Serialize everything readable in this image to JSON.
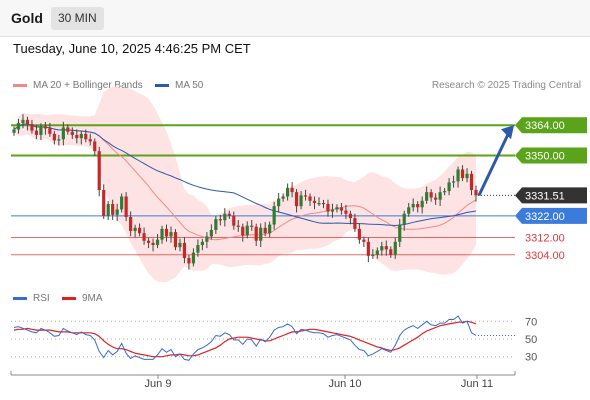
{
  "header": {
    "title": "Gold",
    "timeframe": "30 MIN"
  },
  "timestamp": "Tuesday, June 10, 2025 4:46:25 PM CET",
  "legend": {
    "ma20_label": "MA 20 + Bollinger Bands",
    "ma50_label": "MA 50",
    "ma20_color": "#f08a8a",
    "ma50_color": "#2b5aa8",
    "research": "Research © 2025 Trading Central"
  },
  "rsi_legend": {
    "rsi_label": "RSI",
    "ma_label": "9MA",
    "rsi_color": "#3a6bd0",
    "ma_color": "#e02020"
  },
  "chart_data": {
    "type": "candlestick",
    "price_range": [
      3290,
      3378
    ],
    "levels": [
      {
        "value": 3364.0,
        "label": "3364.00",
        "kind": "resistance",
        "color": "#5aa31a"
      },
      {
        "value": 3350.0,
        "label": "3350.00",
        "kind": "resistance",
        "color": "#5aa31a"
      },
      {
        "value": 3331.51,
        "label": "3331.51",
        "kind": "last-price",
        "color": "#333333"
      },
      {
        "value": 3322.0,
        "label": "3322.00",
        "kind": "pivot",
        "color": "#3a7bdc"
      },
      {
        "value": 3312.0,
        "label": "3312.00",
        "kind": "support",
        "color": "#e03a3a"
      },
      {
        "value": 3304.0,
        "label": "3304.00",
        "kind": "support",
        "color": "#e03a3a"
      }
    ],
    "closes": [
      3362.0,
      3365.0,
      3366.5,
      3364.5,
      3361.5,
      3359.5,
      3363.5,
      3362.5,
      3360.0,
      3357.0,
      3357.5,
      3363.0,
      3361.0,
      3359.5,
      3358.0,
      3360.0,
      3357.5,
      3356.5,
      3352.0,
      3334.0,
      3322.0,
      3327.5,
      3322.5,
      3325.0,
      3331.0,
      3321.5,
      3315.0,
      3316.5,
      3314.0,
      3310.5,
      3309.5,
      3308.5,
      3311.0,
      3316.0,
      3312.5,
      3314.5,
      3307.5,
      3309.5,
      3302.5,
      3300.0,
      3305.0,
      3308.5,
      3310.0,
      3312.5,
      3315.5,
      3320.5,
      3320.0,
      3323.0,
      3322.0,
      3317.5,
      3317.0,
      3313.0,
      3317.5,
      3317.0,
      3310.5,
      3316.5,
      3314.0,
      3318.0,
      3326.5,
      3330.0,
      3331.0,
      3335.0,
      3333.0,
      3326.5,
      3331.5,
      3331.0,
      3329.0,
      3328.0,
      3328.0,
      3327.5,
      3324.0,
      3325.0,
      3326.0,
      3324.5,
      3323.0,
      3321.0,
      3316.0,
      3311.0,
      3310.0,
      3303.5,
      3304.0,
      3306.0,
      3308.0,
      3306.5,
      3304.0,
      3310.0,
      3318.0,
      3323.0,
      3326.0,
      3327.5,
      3326.0,
      3329.0,
      3333.0,
      3330.5,
      3329.5,
      3333.0,
      3333.5,
      3337.5,
      3338.0,
      3343.5,
      3339.5,
      3341.5,
      3334.0,
      3331.5
    ],
    "trend_forecast": {
      "from": 3331.5,
      "to": 3364.0,
      "direction": "up"
    },
    "x_ticks": [
      "Jun 9",
      "Jun 10",
      "Jun 11"
    ],
    "rsi": {
      "ticks": [
        70,
        50,
        30
      ],
      "range": [
        15,
        85
      ],
      "values": [
        63,
        64,
        62,
        60,
        58,
        57,
        62,
        60,
        57,
        53,
        54,
        62,
        59,
        57,
        55,
        58,
        55,
        54,
        49,
        36,
        29,
        37,
        32,
        36,
        45,
        34,
        28,
        31,
        29,
        27,
        27,
        27,
        32,
        39,
        35,
        38,
        30,
        33,
        27,
        26,
        33,
        38,
        40,
        43,
        47,
        54,
        53,
        57,
        55,
        49,
        49,
        44,
        50,
        49,
        42,
        50,
        47,
        52,
        60,
        63,
        64,
        67,
        64,
        56,
        61,
        60,
        58,
        57,
        57,
        56,
        52,
        54,
        55,
        53,
        51,
        49,
        43,
        38,
        37,
        31,
        33,
        36,
        39,
        37,
        35,
        43,
        54,
        60,
        63,
        65,
        62,
        66,
        70,
        66,
        65,
        68,
        68,
        72,
        72,
        76,
        68,
        70,
        57,
        54
      ],
      "ma9": [
        60,
        61,
        61,
        62,
        61,
        60,
        60,
        60,
        60,
        59,
        58,
        58,
        58,
        57,
        57,
        57,
        57,
        57,
        56,
        53,
        48,
        44,
        41,
        39,
        39,
        38,
        36,
        34,
        33,
        32,
        31,
        30,
        30,
        30,
        31,
        32,
        32,
        33,
        32,
        31,
        31,
        32,
        34,
        36,
        38,
        40,
        43,
        47,
        50,
        51,
        52,
        52,
        52,
        51,
        50,
        49,
        48,
        48,
        50,
        52,
        54,
        56,
        58,
        58,
        59,
        60,
        61,
        61,
        60,
        59,
        58,
        57,
        56,
        55,
        54,
        53,
        51,
        49,
        47,
        45,
        43,
        41,
        40,
        38,
        37,
        38,
        40,
        43,
        46,
        49,
        52,
        56,
        59,
        61,
        63,
        65,
        66,
        67,
        68,
        69,
        69,
        70,
        69,
        67
      ]
    }
  }
}
